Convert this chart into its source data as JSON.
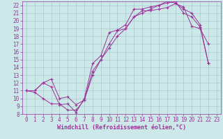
{
  "xlabel": "Windchill (Refroidissement éolien,°C)",
  "bg_color": "#cce8e8",
  "grid_color": "#aacccc",
  "line_color": "#993399",
  "xlim": [
    -0.5,
    23.5
  ],
  "ylim": [
    8,
    22.5
  ],
  "xticks": [
    0,
    1,
    2,
    3,
    4,
    5,
    6,
    7,
    8,
    9,
    10,
    11,
    12,
    13,
    14,
    15,
    16,
    17,
    18,
    19,
    20,
    21,
    22,
    23
  ],
  "yticks": [
    8,
    9,
    10,
    11,
    12,
    13,
    14,
    15,
    16,
    17,
    18,
    19,
    20,
    21,
    22
  ],
  "curve1_x": [
    0,
    1,
    2,
    3,
    4,
    5,
    6,
    7,
    8,
    9,
    10,
    11,
    12,
    13,
    14,
    15,
    16,
    17,
    18,
    19,
    20,
    21,
    22
  ],
  "curve1_y": [
    11.0,
    10.8,
    10.0,
    9.3,
    9.3,
    8.5,
    8.5,
    9.8,
    13.0,
    15.0,
    17.0,
    18.7,
    19.0,
    20.5,
    21.3,
    21.3,
    21.5,
    21.7,
    22.2,
    21.8,
    19.3,
    19.0,
    17.0
  ],
  "curve2_x": [
    0,
    1,
    2,
    3,
    4,
    5,
    6,
    7,
    8,
    9,
    10,
    11,
    12,
    13,
    14,
    15,
    16,
    17,
    18,
    19,
    20,
    21,
    22
  ],
  "curve2_y": [
    11.0,
    11.0,
    12.0,
    11.5,
    9.2,
    9.3,
    8.2,
    10.0,
    14.5,
    15.5,
    18.5,
    18.8,
    19.5,
    21.5,
    21.5,
    21.8,
    22.0,
    22.5,
    22.3,
    21.5,
    21.0,
    19.5,
    14.5
  ],
  "curve3_x": [
    0,
    1,
    2,
    3,
    4,
    5,
    6,
    7,
    8,
    9,
    10,
    11,
    12,
    13,
    14,
    15,
    16,
    17,
    18,
    19,
    20,
    21,
    22
  ],
  "curve3_y": [
    11.0,
    11.0,
    12.0,
    12.5,
    10.0,
    10.2,
    9.2,
    9.8,
    13.5,
    15.0,
    16.5,
    18.0,
    19.0,
    20.5,
    21.0,
    21.5,
    22.0,
    22.3,
    22.5,
    21.0,
    20.5,
    19.2,
    14.5
  ],
  "marker": "+",
  "tick_fontsize": 5.5,
  "label_fontsize": 6.0
}
